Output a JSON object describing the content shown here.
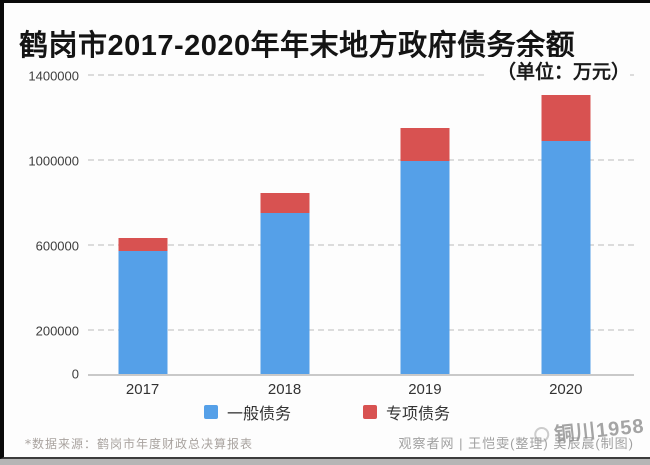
{
  "title": "鹤岗市2017-2020年年末地方政府债务余额",
  "unit_label": "（单位：万元）",
  "chart_data": {
    "type": "bar",
    "stacked": true,
    "title": "鹤岗市2017-2020年年末地方政府债务余额",
    "unit": "万元",
    "categories": [
      "2017",
      "2018",
      "2019",
      "2020"
    ],
    "series": [
      {
        "name": "一般债务",
        "color": "#55a0e8",
        "values": [
          577000,
          758000,
          1002000,
          1093000
        ]
      },
      {
        "name": "专项债务",
        "color": "#d85251",
        "values": [
          64000,
          93000,
          154000,
          217000
        ]
      }
    ],
    "xlabel": "",
    "ylabel": "",
    "ylim": [
      0,
      1400000
    ],
    "yticks": [
      0,
      200000,
      600000,
      1000000,
      1400000
    ],
    "grid": "horizontal-dashed",
    "legend_position": "bottom"
  },
  "footer": {
    "source_note": "*数据来源：鹤岗市年度财政总决算报表",
    "credit": "观察者网 | 王恺雯(整理) 吴辰晨(制图)"
  },
  "watermark": {
    "text": "铜川1958"
  }
}
